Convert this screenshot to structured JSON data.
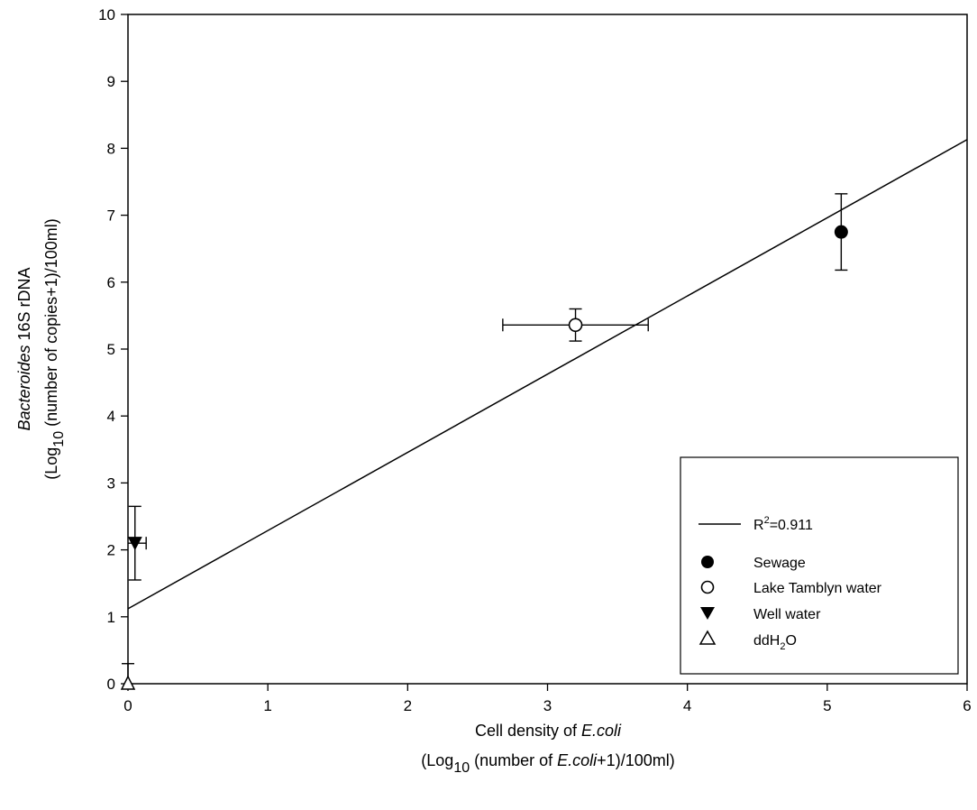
{
  "chart_data": {
    "type": "scatter",
    "x_ticks": [
      "0",
      "1",
      "2",
      "3",
      "4",
      "5",
      "6"
    ],
    "y_ticks": [
      "0",
      "1",
      "2",
      "3",
      "4",
      "5",
      "6",
      "7",
      "8",
      "9",
      "10"
    ],
    "xlim": [
      0,
      6
    ],
    "ylim": [
      0,
      10
    ],
    "grid": false,
    "xlabel": {
      "line1_prefix": "Cell density of ",
      "line1_italic": "E.coli",
      "line2_prefix": "(Log",
      "line2_sub": "10",
      "line2_mid": " (number of ",
      "line2_italic": "E.coli",
      "line2_suffix": "+1)/100ml)"
    },
    "ylabel": {
      "line1_italic": "Bacteroides",
      "line1_suffix": " 16S rDNA",
      "line2_prefix": "(Log",
      "line2_sub": "10",
      "line2_suffix": " (number of  copies+1)/100ml)"
    },
    "series": [
      {
        "name": "Sewage",
        "marker": "filled-circle",
        "x": 5.1,
        "y": 6.75,
        "xerr": 0,
        "yerr": 0.57
      },
      {
        "name": "Lake Tamblyn water",
        "marker": "open-circle",
        "x": 3.2,
        "y": 5.36,
        "xerr": 0.52,
        "yerr": 0.24
      },
      {
        "name": "Well water",
        "marker": "filled-triangle-down",
        "x": 0.05,
        "y": 2.1,
        "xerr": 0.08,
        "yerr": 0.55
      },
      {
        "name": "ddH2O",
        "marker": "open-triangle-up",
        "x": 0,
        "y": 0,
        "xerr": 0,
        "yerr": 0.3
      }
    ],
    "regression": {
      "x0": 0,
      "y0": 1.12,
      "x1": 6,
      "y1": 8.13
    },
    "legend": {
      "placement": "bottom-right",
      "r2_prefix": "R",
      "r2_sup": "2",
      "r2_suffix": "=0.911",
      "entries": [
        {
          "marker": "filled-circle",
          "text": "Sewage"
        },
        {
          "marker": "open-circle",
          "text": "Lake Tamblyn water"
        },
        {
          "marker": "filled-triangle-down",
          "text": "Well water"
        },
        {
          "marker": "open-triangle-up",
          "text_prefix": "ddH",
          "text_sub": "2",
          "text_suffix": "O"
        }
      ]
    }
  }
}
